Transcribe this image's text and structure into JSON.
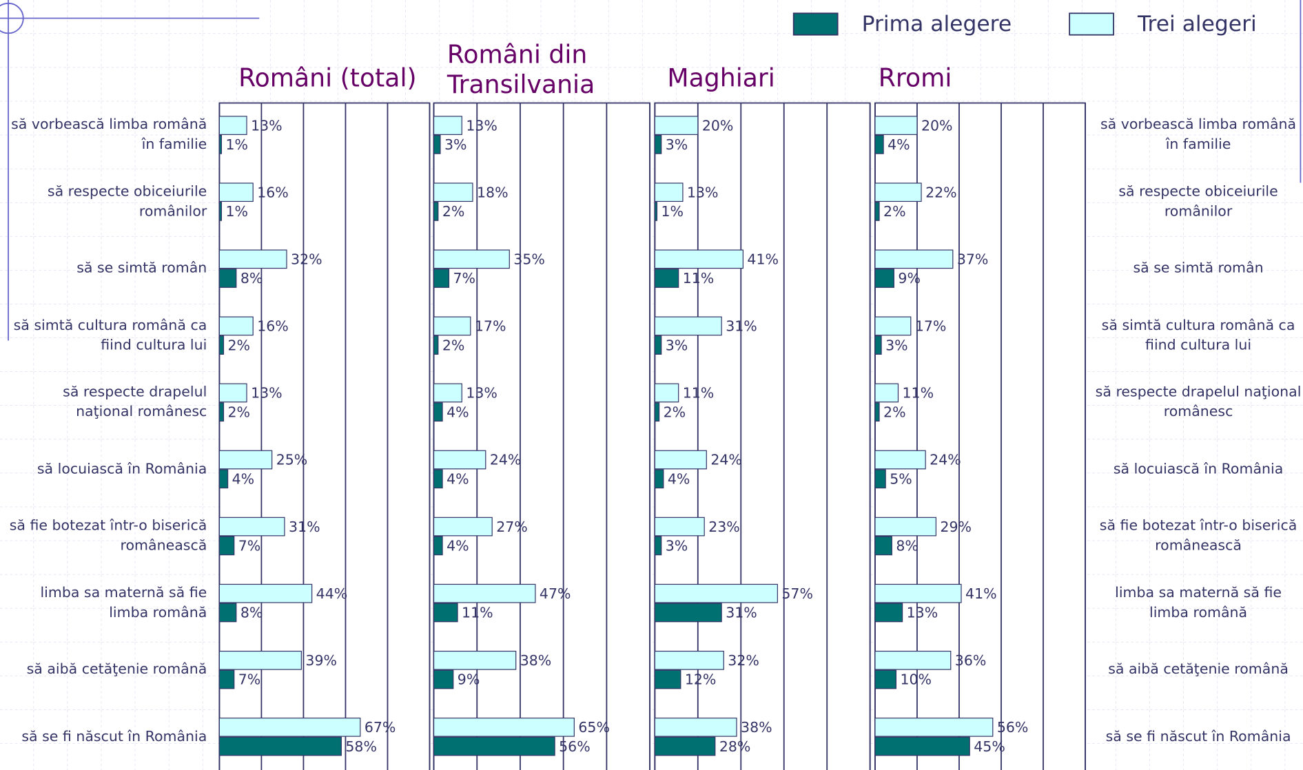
{
  "chart_data": [
    {
      "type": "bar",
      "title": "Români (total)",
      "categories": [
        "să vorbească limba română în familie",
        "să respecte obiceiurile românilor",
        "să se simtă român",
        "să simtă cultura română ca fiind cultura lui",
        "să respecte drapelul naţional românesc",
        "să locuiască în România",
        "să fie botezat într-o biserică românească",
        "limba sa maternă să fie limba română",
        "să aibă cetăţenie română",
        "să se fi născut în România"
      ],
      "series": [
        {
          "name": "Prima alegere",
          "color": "#007070",
          "values": [
            1,
            1,
            8,
            2,
            2,
            4,
            7,
            8,
            7,
            58
          ],
          "value_labels": [
            "1%",
            "1%",
            "8%",
            "2%",
            "2%",
            "4%",
            "7%",
            "8%",
            "7%",
            "58%"
          ]
        },
        {
          "name": "Trei alegeri",
          "color": "#ccffff",
          "values": [
            13,
            16,
            32,
            16,
            13,
            25,
            31,
            44,
            39,
            67
          ],
          "value_labels": [
            "13%",
            "16%",
            "32%",
            "16%",
            "13%",
            "25%",
            "31%",
            "44%",
            "39%",
            "67%"
          ]
        }
      ],
      "xlim": [
        0,
        100
      ],
      "xticks": [
        0,
        20,
        40,
        60,
        80,
        100
      ],
      "grid": true
    },
    {
      "type": "bar",
      "title": "Români din Transilvania",
      "series": [
        {
          "name": "Prima alegere",
          "color": "#007070",
          "values": [
            3,
            2,
            7,
            2,
            4,
            4,
            4,
            11,
            9,
            56
          ],
          "value_labels": [
            "3%",
            "2%",
            "7%",
            "2%",
            "4%",
            "4%",
            "4%",
            "11%",
            "9%",
            "56%"
          ]
        },
        {
          "name": "Trei alegeri",
          "color": "#ccffff",
          "values": [
            13,
            18,
            35,
            17,
            13,
            24,
            27,
            47,
            38,
            65
          ],
          "value_labels": [
            "13%",
            "18%",
            "35%",
            "17%",
            "13%",
            "24%",
            "27%",
            "47%",
            "38%",
            "65%"
          ]
        }
      ],
      "xlim": [
        0,
        100
      ],
      "xticks": [
        0,
        20,
        40,
        60,
        80,
        100
      ],
      "grid": true
    },
    {
      "type": "bar",
      "title": "Maghiari",
      "series": [
        {
          "name": "Prima alegere",
          "color": "#007070",
          "values": [
            3,
            1,
            11,
            3,
            2,
            4,
            3,
            31,
            12,
            28
          ],
          "value_labels": [
            "3%",
            "1%",
            "11%",
            "3%",
            "2%",
            "4%",
            "3%",
            "31%",
            "12%",
            "28%"
          ]
        },
        {
          "name": "Trei alegeri",
          "color": "#ccffff",
          "values": [
            20,
            13,
            41,
            31,
            11,
            24,
            23,
            57,
            32,
            38
          ],
          "value_labels": [
            "20%",
            "13%",
            "41%",
            "31%",
            "11%",
            "24%",
            "23%",
            "57%",
            "32%",
            "38%"
          ]
        }
      ],
      "xlim": [
        0,
        100
      ],
      "xticks": [
        0,
        20,
        40,
        60,
        80,
        100
      ],
      "grid": true
    },
    {
      "type": "bar",
      "title": "Rromi",
      "categories": [
        "să vorbească limba română în familie",
        "să respecte obiceiurile românilor",
        "să se simtă român",
        "să simtă cultura română ca fiind cultura lui",
        "să respecte drapelul naţional românesc",
        "să locuiască în România",
        "să fie botezat într-o biserică românească",
        "limba sa maternă să fie limba română",
        "să aibă cetăţenie română",
        "să se fi născut în România"
      ],
      "series": [
        {
          "name": "Prima alegere",
          "color": "#007070",
          "values": [
            4,
            2,
            9,
            3,
            2,
            5,
            8,
            13,
            10,
            45
          ],
          "value_labels": [
            "4%",
            "2%",
            "9%",
            "3%",
            "2%",
            "5%",
            "8%",
            "13%",
            "10%",
            "45%"
          ]
        },
        {
          "name": "Trei alegeri",
          "color": "#ccffff",
          "values": [
            20,
            22,
            37,
            17,
            11,
            24,
            29,
            41,
            36,
            56
          ],
          "value_labels": [
            "20%",
            "22%",
            "37%",
            "17%",
            "11%",
            "24%",
            "29%",
            "41%",
            "36%",
            "56%"
          ]
        }
      ],
      "xlim": [
        0,
        100
      ],
      "xticks": [
        0,
        20,
        40,
        60,
        80,
        100
      ],
      "grid": true
    }
  ]
}
